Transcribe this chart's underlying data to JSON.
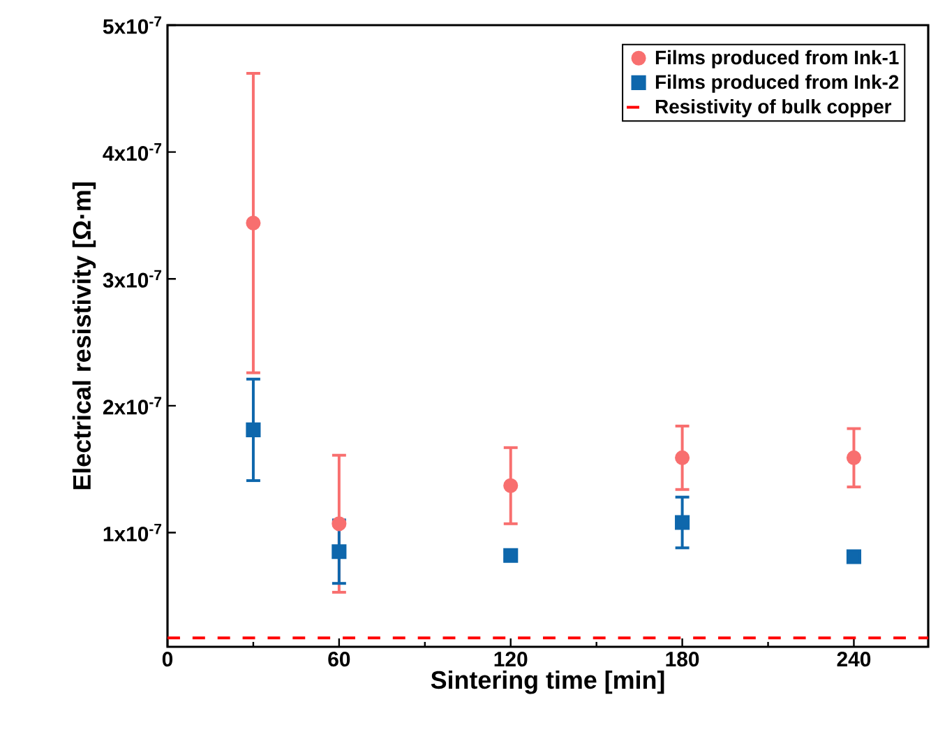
{
  "chart_data": {
    "type": "scatter",
    "xlabel": "Sintering time [min]",
    "ylabel": "Electrical resistivity [Ω·m]",
    "x": [
      30,
      60,
      120,
      180,
      240
    ],
    "series": [
      {
        "name": "Films produced from Ink-1",
        "color": "#f86f6f",
        "marker": "circle",
        "values": [
          3.44e-07,
          1.07e-07,
          1.37e-07,
          1.59e-07,
          1.59e-07
        ],
        "errors": [
          1.18e-07,
          5.4e-08,
          3e-08,
          2.5e-08,
          2.3e-08
        ]
      },
      {
        "name": "Films produced from Ink-2",
        "color": "#0e67ac",
        "marker": "square",
        "values": [
          1.81e-07,
          8.5e-08,
          8.2e-08,
          1.08e-07,
          8.1e-08
        ],
        "errors": [
          4e-08,
          2.5e-08,
          3e-09,
          2e-08,
          4e-09
        ]
      }
    ],
    "ref_lines": [
      {
        "axis": "y",
        "value": 1.7e-08,
        "label": "Resistivity of bulk copper",
        "color": "#ff0000",
        "line_style": "dashed"
      }
    ],
    "xlim": [
      0,
      266
    ],
    "ylim": [
      1e-08,
      5e-07
    ],
    "xticks": [
      0,
      60,
      120,
      180,
      240
    ],
    "yticks": [
      {
        "value": 1e-07,
        "label": "1x10$^{-7}$"
      },
      {
        "value": 2e-07,
        "label": "2x10$^{-7}$"
      },
      {
        "value": 3e-07,
        "label": "3x10$^{-7}$"
      },
      {
        "value": 4e-07,
        "label": "4x10$^{-7}$"
      },
      {
        "value": 5e-07,
        "label": "5x10$^{-7}$"
      }
    ],
    "grid": false,
    "legend": "top right"
  }
}
